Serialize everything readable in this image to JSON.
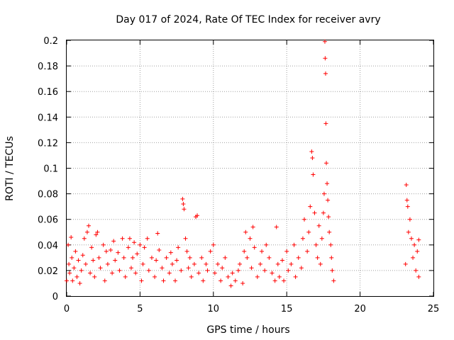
{
  "chart_data": {
    "type": "scatter",
    "title": "Day 017 of 2024, Rate Of TEC Index for receiver avry",
    "xlabel": "GPS time / hours",
    "ylabel": "ROTI / TECUs",
    "xlim": [
      0,
      25
    ],
    "ylim": [
      0,
      0.2
    ],
    "xticks": [
      0,
      5,
      10,
      15,
      20,
      25
    ],
    "xtick_labels": [
      "0",
      "5",
      "10",
      "15",
      "20",
      "25"
    ],
    "yticks": [
      0,
      0.02,
      0.04,
      0.06,
      0.08,
      0.1,
      0.12,
      0.14,
      0.16,
      0.18,
      0.2
    ],
    "ytick_labels": [
      "0",
      "0.02",
      "0.04",
      "0.06",
      "0.08",
      "0.1",
      "0.12",
      "0.14",
      "0.16",
      "0.18",
      "0.2"
    ],
    "grid": true,
    "marker": "+",
    "color": "#ff0000",
    "series": [
      {
        "points": [
          [
            0.0,
            0.012
          ],
          [
            0.1,
            0.04
          ],
          [
            0.15,
            0.025
          ],
          [
            0.2,
            0.018
          ],
          [
            0.3,
            0.046
          ],
          [
            0.35,
            0.03
          ],
          [
            0.4,
            0.012
          ],
          [
            0.5,
            0.022
          ],
          [
            0.6,
            0.035
          ],
          [
            0.7,
            0.015
          ],
          [
            0.8,
            0.028
          ],
          [
            0.9,
            0.01
          ],
          [
            1.0,
            0.02
          ],
          [
            1.1,
            0.032
          ],
          [
            1.2,
            0.045
          ],
          [
            1.3,
            0.025
          ],
          [
            1.4,
            0.05
          ],
          [
            1.5,
            0.055
          ],
          [
            1.6,
            0.018
          ],
          [
            1.7,
            0.038
          ],
          [
            1.8,
            0.028
          ],
          [
            1.9,
            0.015
          ],
          [
            2.0,
            0.048
          ],
          [
            2.1,
            0.05
          ],
          [
            2.2,
            0.03
          ],
          [
            2.3,
            0.022
          ],
          [
            2.5,
            0.04
          ],
          [
            2.6,
            0.012
          ],
          [
            2.7,
            0.035
          ],
          [
            2.8,
            0.025
          ],
          [
            3.0,
            0.036
          ],
          [
            3.1,
            0.018
          ],
          [
            3.2,
            0.043
          ],
          [
            3.3,
            0.028
          ],
          [
            3.5,
            0.034
          ],
          [
            3.6,
            0.02
          ],
          [
            3.8,
            0.045
          ],
          [
            3.9,
            0.03
          ],
          [
            4.0,
            0.015
          ],
          [
            4.2,
            0.038
          ],
          [
            4.3,
            0.045
          ],
          [
            4.4,
            0.022
          ],
          [
            4.5,
            0.03
          ],
          [
            4.6,
            0.042
          ],
          [
            4.7,
            0.018
          ],
          [
            4.8,
            0.033
          ],
          [
            5.0,
            0.04
          ],
          [
            5.1,
            0.012
          ],
          [
            5.2,
            0.025
          ],
          [
            5.3,
            0.038
          ],
          [
            5.5,
            0.045
          ],
          [
            5.6,
            0.02
          ],
          [
            5.8,
            0.03
          ],
          [
            6.0,
            0.015
          ],
          [
            6.1,
            0.028
          ],
          [
            6.2,
            0.049
          ],
          [
            6.3,
            0.036
          ],
          [
            6.5,
            0.022
          ],
          [
            6.6,
            0.012
          ],
          [
            6.8,
            0.03
          ],
          [
            7.0,
            0.018
          ],
          [
            7.1,
            0.034
          ],
          [
            7.2,
            0.025
          ],
          [
            7.4,
            0.012
          ],
          [
            7.5,
            0.028
          ],
          [
            7.6,
            0.038
          ],
          [
            7.8,
            0.02
          ],
          [
            7.9,
            0.076
          ],
          [
            7.95,
            0.072
          ],
          [
            8.0,
            0.068
          ],
          [
            8.1,
            0.045
          ],
          [
            8.2,
            0.035
          ],
          [
            8.3,
            0.022
          ],
          [
            8.4,
            0.03
          ],
          [
            8.5,
            0.015
          ],
          [
            8.7,
            0.025
          ],
          [
            8.8,
            0.062
          ],
          [
            8.9,
            0.063
          ],
          [
            9.0,
            0.018
          ],
          [
            9.2,
            0.03
          ],
          [
            9.3,
            0.012
          ],
          [
            9.5,
            0.025
          ],
          [
            9.6,
            0.02
          ],
          [
            9.8,
            0.035
          ],
          [
            10.0,
            0.04
          ],
          [
            10.1,
            0.018
          ],
          [
            10.3,
            0.025
          ],
          [
            10.5,
            0.012
          ],
          [
            10.6,
            0.022
          ],
          [
            10.8,
            0.03
          ],
          [
            11.0,
            0.015
          ],
          [
            11.2,
            0.008
          ],
          [
            11.3,
            0.018
          ],
          [
            11.5,
            0.012
          ],
          [
            11.7,
            0.02
          ],
          [
            11.8,
            0.025
          ],
          [
            12.0,
            0.01
          ],
          [
            12.1,
            0.035
          ],
          [
            12.2,
            0.05
          ],
          [
            12.3,
            0.03
          ],
          [
            12.5,
            0.045
          ],
          [
            12.6,
            0.022
          ],
          [
            12.7,
            0.054
          ],
          [
            12.8,
            0.038
          ],
          [
            13.0,
            0.015
          ],
          [
            13.2,
            0.025
          ],
          [
            13.3,
            0.035
          ],
          [
            13.5,
            0.02
          ],
          [
            13.6,
            0.04
          ],
          [
            13.8,
            0.03
          ],
          [
            14.0,
            0.018
          ],
          [
            14.2,
            0.012
          ],
          [
            14.3,
            0.054
          ],
          [
            14.4,
            0.025
          ],
          [
            14.5,
            0.015
          ],
          [
            14.7,
            0.028
          ],
          [
            14.8,
            0.012
          ],
          [
            15.0,
            0.035
          ],
          [
            15.1,
            0.02
          ],
          [
            15.3,
            0.025
          ],
          [
            15.5,
            0.04
          ],
          [
            15.6,
            0.015
          ],
          [
            15.8,
            0.03
          ],
          [
            16.0,
            0.022
          ],
          [
            16.1,
            0.045
          ],
          [
            16.2,
            0.06
          ],
          [
            16.4,
            0.035
          ],
          [
            16.5,
            0.05
          ],
          [
            16.6,
            0.07
          ],
          [
            16.7,
            0.113
          ],
          [
            16.75,
            0.108
          ],
          [
            16.8,
            0.095
          ],
          [
            16.9,
            0.065
          ],
          [
            17.0,
            0.04
          ],
          [
            17.1,
            0.03
          ],
          [
            17.2,
            0.055
          ],
          [
            17.3,
            0.025
          ],
          [
            17.4,
            0.045
          ],
          [
            17.5,
            0.065
          ],
          [
            17.55,
            0.08
          ],
          [
            17.6,
            0.199
          ],
          [
            17.62,
            0.186
          ],
          [
            17.65,
            0.174
          ],
          [
            17.67,
            0.135
          ],
          [
            17.7,
            0.104
          ],
          [
            17.75,
            0.088
          ],
          [
            17.8,
            0.075
          ],
          [
            17.85,
            0.062
          ],
          [
            17.9,
            0.05
          ],
          [
            18.0,
            0.04
          ],
          [
            18.05,
            0.03
          ],
          [
            18.1,
            0.02
          ],
          [
            18.2,
            0.012
          ],
          [
            23.1,
            0.025
          ],
          [
            23.15,
            0.087
          ],
          [
            23.2,
            0.075
          ],
          [
            23.25,
            0.07
          ],
          [
            23.3,
            0.05
          ],
          [
            23.4,
            0.06
          ],
          [
            23.5,
            0.045
          ],
          [
            23.6,
            0.03
          ],
          [
            23.7,
            0.04
          ],
          [
            23.8,
            0.02
          ],
          [
            23.9,
            0.035
          ],
          [
            24.0,
            0.015
          ],
          [
            24.0,
            0.044
          ]
        ]
      }
    ]
  }
}
